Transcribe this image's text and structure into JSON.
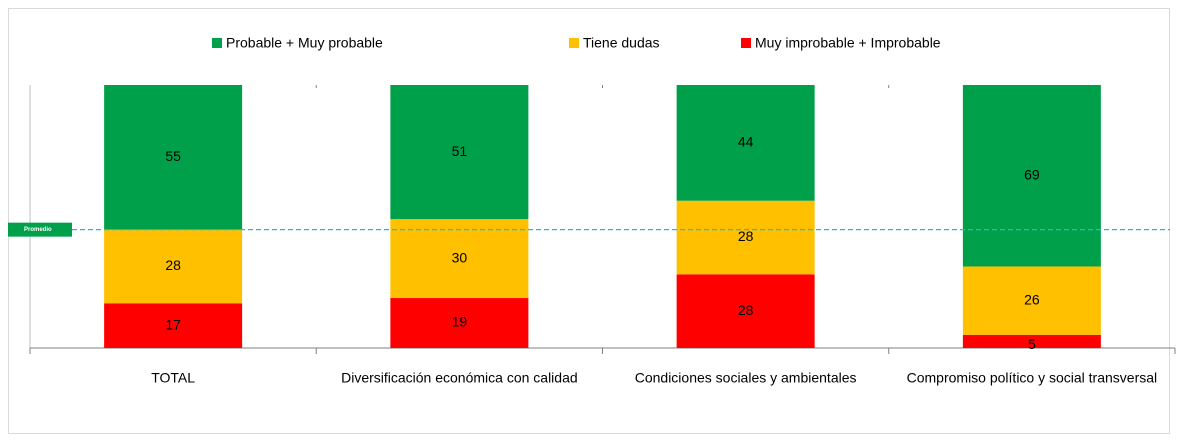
{
  "chart_data": {
    "type": "stacked_bar",
    "categories": [
      "TOTAL",
      "Diversificación económica con calidad",
      "Condiciones sociales y ambientales",
      "Compromiso político y social transversal"
    ],
    "series": [
      {
        "name": "Probable + Muy probable",
        "color": "#00a04b",
        "values": [
          55,
          51,
          44,
          69
        ]
      },
      {
        "name": "Tiene dudas",
        "color": "#ffc000",
        "values": [
          28,
          30,
          28,
          26
        ]
      },
      {
        "name": "Muy improbable + Improbable",
        "color": "#ff0000",
        "values": [
          17,
          19,
          28,
          5
        ]
      }
    ],
    "ylim": [
      0,
      100
    ],
    "reference_line": {
      "label": "Promedio",
      "value": 45
    }
  }
}
